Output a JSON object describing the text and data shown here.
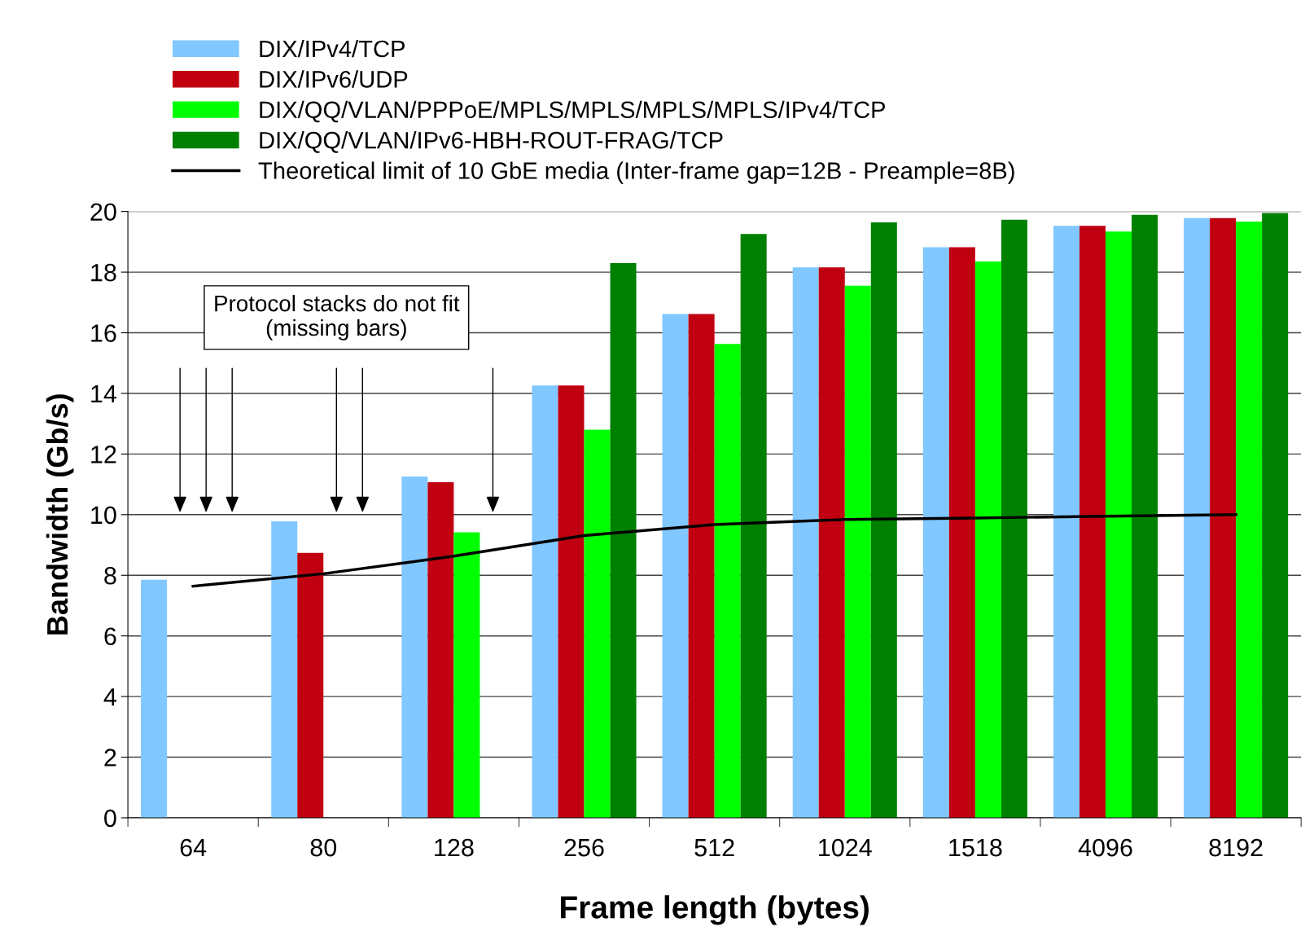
{
  "chart_data": {
    "type": "bar",
    "xlabel": "Frame length (bytes)",
    "ylabel": "Bandwidth (Gb/s)",
    "categories": [
      "64",
      "80",
      "128",
      "256",
      "512",
      "1024",
      "1518",
      "4096",
      "8192"
    ],
    "series": [
      {
        "name": "DIX/IPv4/TCP",
        "color": "#80c8ff",
        "values": [
          7.85,
          9.78,
          11.26,
          14.26,
          16.62,
          18.16,
          18.82,
          19.53,
          19.78
        ]
      },
      {
        "name": "DIX/IPv6/UDP",
        "color": "#c00010",
        "values": [
          null,
          8.74,
          11.07,
          14.26,
          16.62,
          18.16,
          18.82,
          19.53,
          19.78
        ]
      },
      {
        "name": "DIX/QQ/VLAN/PPPoE/MPLS/MPLS/MPLS/MPLS/IPv4/TCP",
        "color": "#00ff00",
        "values": [
          null,
          null,
          9.42,
          12.8,
          15.63,
          17.55,
          18.35,
          19.34,
          19.67
        ]
      },
      {
        "name": "DIX/QQ/VLAN/IPv6-HBH-ROUT-FRAG/TCP",
        "color": "#008000",
        "values": [
          null,
          null,
          null,
          18.3,
          19.26,
          19.64,
          19.73,
          19.89,
          19.95
        ]
      },
      {
        "name": "Theoretical limit of 10 GbE media (Inter-frame gap=12B - Preample=8B)",
        "type": "line",
        "color": "#000000",
        "values": [
          7.64,
          8.05,
          8.63,
          9.31,
          9.67,
          9.84,
          9.89,
          9.95,
          10.0
        ]
      }
    ],
    "ylim": [
      0,
      20
    ],
    "yticks": [
      0,
      2,
      4,
      6,
      8,
      10,
      12,
      14,
      16,
      18,
      20
    ],
    "grid": "y",
    "legend": "top left",
    "marker": "none",
    "line_style": "solid",
    "annotations": [
      "Protocol stacks do not fit\n(missing bars)"
    ]
  }
}
